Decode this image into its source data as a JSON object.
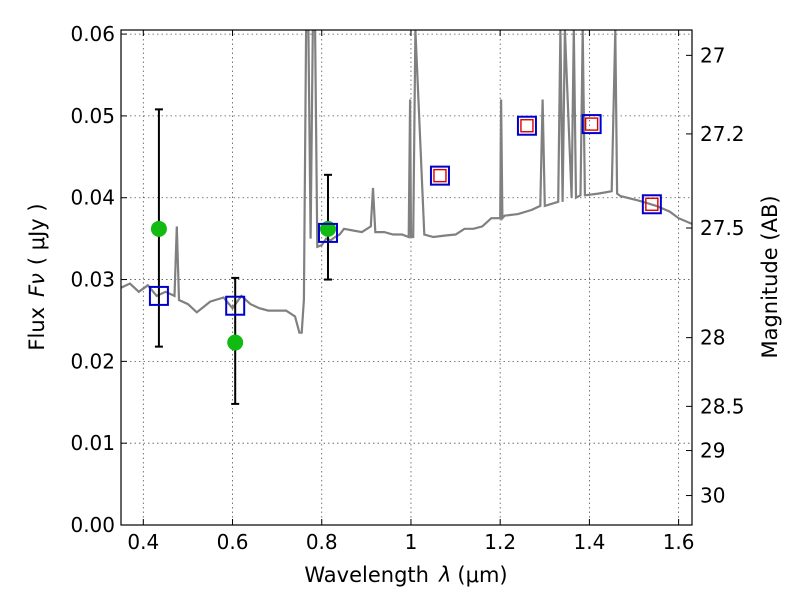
{
  "chart_data": {
    "type": "scatter",
    "xlabel_prefix": "Wavelength",
    "xlabel_symbol": "λ",
    "xlabel_unit": "(μm)",
    "ylabel_prefix": "Flux",
    "ylabel_symbol": "Fν",
    "ylabel_unit": "( μJy )",
    "y2label": "Magnitude (AB)",
    "xlim": [
      0.35,
      1.63
    ],
    "ylim": [
      0.0,
      0.0605
    ],
    "grid": true,
    "xticks": [
      0.4,
      0.6,
      0.8,
      1.0,
      1.2,
      1.4,
      1.6
    ],
    "xtick_labels": [
      "0.4",
      "0.6",
      "0.8",
      "1",
      "1.2",
      "1.4",
      "1.6"
    ],
    "yticks": [
      0.0,
      0.01,
      0.02,
      0.03,
      0.04,
      0.05,
      0.06
    ],
    "ytick_labels": [
      "0.00",
      "0.01",
      "0.02",
      "0.03",
      "0.04",
      "0.05",
      "0.06"
    ],
    "y2ticks": [
      {
        "label": "27",
        "flux": 0.0574
      },
      {
        "label": "27.2",
        "flux": 0.0478
      },
      {
        "label": "27.5",
        "flux": 0.0363
      },
      {
        "label": "28",
        "flux": 0.0229
      },
      {
        "label": "28.5",
        "flux": 0.0145
      },
      {
        "label": "29",
        "flux": 0.0091
      },
      {
        "label": "30",
        "flux": 0.0036
      }
    ],
    "colors": {
      "sed": "#808080",
      "observed": "#11bb11",
      "model_box": "#0000cc",
      "model_box_inner": "#dd0000",
      "errorbar": "#000000"
    },
    "sed_spectrum": {
      "x": [
        0.35,
        0.37,
        0.39,
        0.41,
        0.43,
        0.45,
        0.47,
        0.475,
        0.48,
        0.5,
        0.52,
        0.55,
        0.58,
        0.6,
        0.62,
        0.64,
        0.66,
        0.68,
        0.7,
        0.72,
        0.74,
        0.75,
        0.755,
        0.76,
        0.765,
        0.77,
        0.775,
        0.78,
        0.785,
        0.79,
        0.8,
        0.81,
        0.82,
        0.83,
        0.84,
        0.85,
        0.87,
        0.89,
        0.91,
        0.915,
        0.92,
        0.94,
        0.96,
        0.98,
        0.995,
        0.998,
        1.0,
        1.005,
        1.01,
        1.03,
        1.05,
        1.08,
        1.1,
        1.12,
        1.14,
        1.16,
        1.18,
        1.2,
        1.202,
        1.205,
        1.21,
        1.24,
        1.27,
        1.29,
        1.295,
        1.3,
        1.33,
        1.335,
        1.34,
        1.345,
        1.36,
        1.365,
        1.37,
        1.38,
        1.385,
        1.39,
        1.42,
        1.45,
        1.458,
        1.462,
        1.47,
        1.5,
        1.52,
        1.55,
        1.58,
        1.6,
        1.63
      ],
      "y": [
        0.029,
        0.0295,
        0.0285,
        0.0293,
        0.028,
        0.0285,
        0.028,
        0.0365,
        0.0275,
        0.027,
        0.026,
        0.0273,
        0.0278,
        0.0265,
        0.028,
        0.027,
        0.0265,
        0.0262,
        0.0262,
        0.0262,
        0.0255,
        0.0235,
        0.0235,
        0.0275,
        0.0605,
        0.0605,
        0.035,
        0.0605,
        0.0605,
        0.034,
        0.0342,
        0.035,
        0.0348,
        0.0352,
        0.0355,
        0.0362,
        0.036,
        0.0358,
        0.0365,
        0.0412,
        0.0358,
        0.0358,
        0.0355,
        0.0355,
        0.0352,
        0.052,
        0.0352,
        0.0352,
        0.0605,
        0.0355,
        0.0352,
        0.0354,
        0.0355,
        0.0362,
        0.0362,
        0.0365,
        0.0375,
        0.0375,
        0.052,
        0.0375,
        0.0378,
        0.038,
        0.0385,
        0.039,
        0.052,
        0.039,
        0.0395,
        0.0605,
        0.0395,
        0.0605,
        0.04,
        0.0605,
        0.04,
        0.0403,
        0.0605,
        0.0403,
        0.0405,
        0.0408,
        0.0605,
        0.0405,
        0.0402,
        0.0398,
        0.0395,
        0.039,
        0.0383,
        0.0375,
        0.0368
      ]
    },
    "observed": [
      {
        "x": 0.435,
        "y": 0.0362,
        "yerr_low": 0.0218,
        "yerr_high": 0.0508
      },
      {
        "x": 0.606,
        "y": 0.0223,
        "yerr_low": 0.0148,
        "yerr_high": 0.0302
      },
      {
        "x": 0.814,
        "y": 0.0362,
        "yerr_low": 0.03,
        "yerr_high": 0.0428
      }
    ],
    "model_photometry_blue": [
      {
        "x": 0.435,
        "y": 0.028
      },
      {
        "x": 0.606,
        "y": 0.0268
      },
      {
        "x": 0.814,
        "y": 0.0357
      },
      {
        "x": 1.065,
        "y": 0.0427
      },
      {
        "x": 1.26,
        "y": 0.0488
      },
      {
        "x": 1.405,
        "y": 0.049
      },
      {
        "x": 1.54,
        "y": 0.0392
      }
    ],
    "model_photometry_red": [
      {
        "x": 1.065,
        "y": 0.0427
      },
      {
        "x": 1.26,
        "y": 0.0488
      },
      {
        "x": 1.405,
        "y": 0.049
      },
      {
        "x": 1.54,
        "y": 0.0392
      }
    ]
  }
}
